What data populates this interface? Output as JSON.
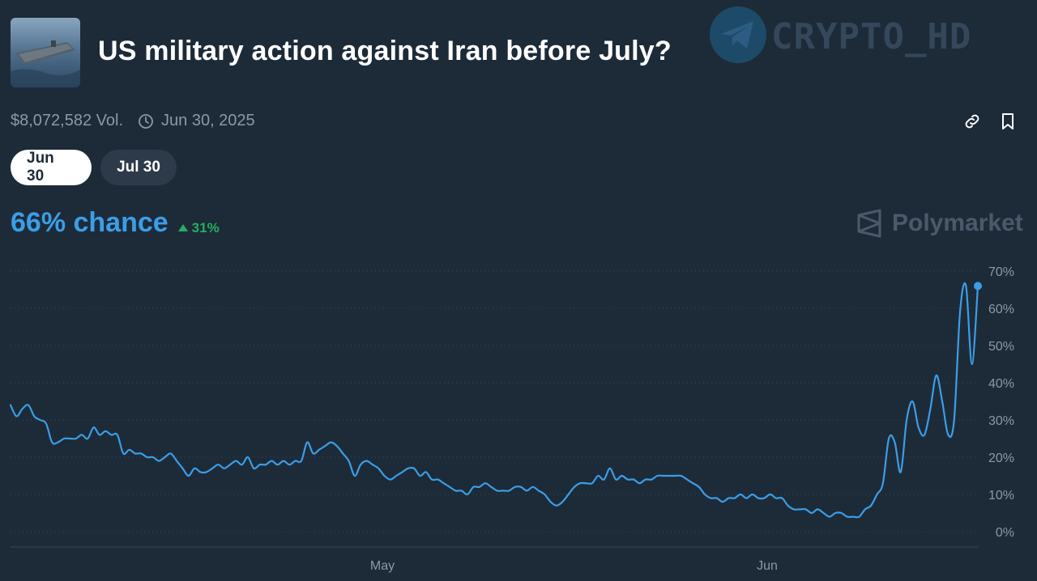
{
  "header": {
    "title": "US military action against Iran before July?",
    "watermark_text": "CRYPTO_HD",
    "thumbnail_icon": "aircraft-carrier-image"
  },
  "meta": {
    "volume": "$8,072,582 Vol.",
    "end_date": "Jun 30, 2025"
  },
  "tabs": [
    {
      "label": "Jun 30",
      "active": true
    },
    {
      "label": "Jul 30",
      "active": false
    }
  ],
  "chance": {
    "label": "66% chance",
    "delta": "31%"
  },
  "brand": {
    "name": "Polymarket"
  },
  "colors": {
    "background": "#1d2b39",
    "line": "#3b9ee6",
    "up": "#27ae60"
  },
  "chart_data": {
    "type": "line",
    "x_ticks": [
      "May",
      "Jun"
    ],
    "y_ticks": [
      "0%",
      "10%",
      "20%",
      "30%",
      "40%",
      "50%",
      "60%",
      "70%"
    ],
    "ylim": [
      0,
      70
    ],
    "grid": true,
    "series": [
      {
        "values": [
          34,
          31,
          33,
          34,
          31,
          30,
          29,
          24,
          24,
          25,
          25,
          25,
          26,
          25,
          28,
          26,
          27,
          26,
          26,
          21,
          22,
          21,
          21,
          20,
          20,
          19,
          20,
          21,
          19,
          17,
          15,
          17,
          16,
          16,
          17,
          18,
          17,
          18,
          19,
          18,
          20,
          17,
          18,
          18,
          19,
          18,
          19,
          18,
          19,
          19,
          24,
          21,
          22,
          23,
          24,
          23,
          21,
          19,
          15,
          18,
          19,
          18,
          17,
          15,
          14,
          15,
          16,
          17,
          17,
          15,
          16,
          14,
          14,
          13,
          12,
          11,
          11,
          10,
          12,
          12,
          13,
          12,
          11,
          11,
          11,
          12,
          12,
          11,
          12,
          11,
          10,
          8,
          7,
          8,
          10,
          12,
          13,
          13,
          13,
          15,
          14,
          17,
          14,
          15,
          14,
          14,
          13,
          14,
          14,
          15,
          15,
          15,
          15,
          15,
          14,
          13,
          12,
          10,
          9,
          9,
          8,
          9,
          9,
          10,
          9,
          10,
          9,
          9,
          10,
          9,
          9,
          7,
          6,
          6,
          6,
          5,
          6,
          5,
          4,
          5,
          5,
          4,
          4,
          4,
          6,
          7,
          10,
          13,
          25,
          24,
          16,
          30,
          35,
          28,
          26,
          33,
          42,
          35,
          26,
          30,
          59,
          66,
          45,
          66
        ]
      }
    ]
  }
}
